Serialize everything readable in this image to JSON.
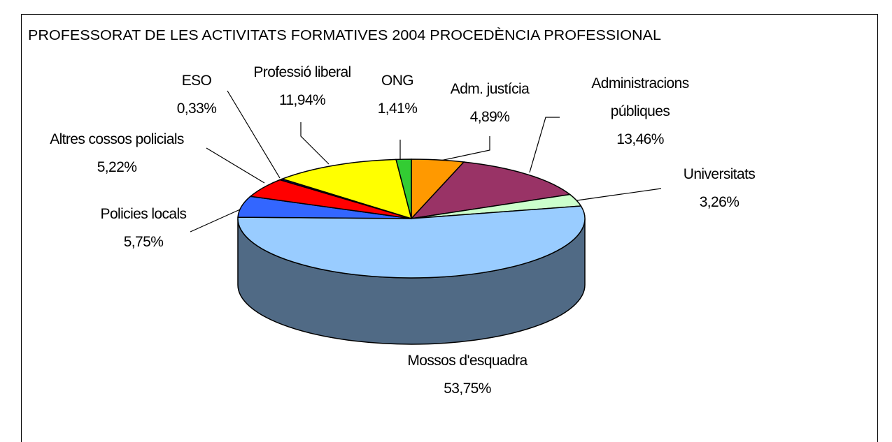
{
  "chart_data": {
    "type": "pie",
    "title": "PROFESSORAT DE LES ACTIVITATS FORMATIVES 2004 PROCEDÈNCIA PROFESSIONAL",
    "categories": [
      "Adm. justícia",
      "Administracions públiques",
      "Universitats",
      "Mossos d'esquadra",
      "Policies locals",
      "Altres cossos policials",
      "ESO",
      "Professió liberal",
      "ONG"
    ],
    "values": [
      4.89,
      13.46,
      3.26,
      53.75,
      5.75,
      5.22,
      0.33,
      11.94,
      1.41
    ],
    "value_labels": [
      "4,89%",
      "13,46%",
      "3,26%",
      "53,75%",
      "5,75%",
      "5,22%",
      "0,33%",
      "11,94%",
      "1,41%"
    ],
    "colors": [
      "#ff9900",
      "#993366",
      "#ccffcc",
      "#99ccff",
      "#3366ff",
      "#ff0000",
      "#000080",
      "#ffff00",
      "#33cc33"
    ]
  }
}
